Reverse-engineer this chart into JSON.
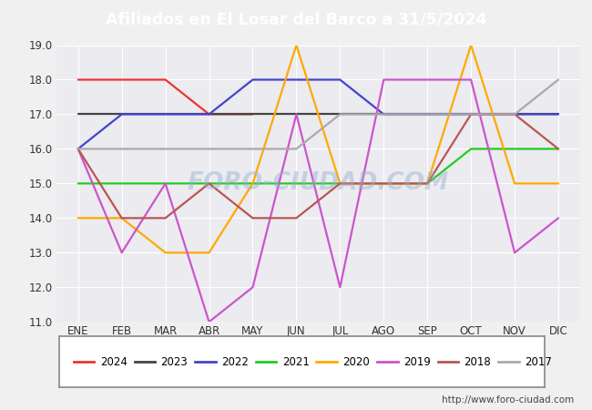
{
  "title": "Afiliados en El Losar del Barco a 31/5/2024",
  "months": [
    "ENE",
    "FEB",
    "MAR",
    "ABR",
    "MAY",
    "JUN",
    "JUL",
    "AGO",
    "SEP",
    "OCT",
    "NOV",
    "DIC"
  ],
  "ylim": [
    11.0,
    19.0
  ],
  "yticks": [
    11.0,
    12.0,
    13.0,
    14.0,
    15.0,
    16.0,
    17.0,
    18.0,
    19.0
  ],
  "series": [
    {
      "year": "2024",
      "color": "#ee3333",
      "data": [
        18,
        18,
        18,
        17,
        17,
        null,
        null,
        null,
        null,
        null,
        null,
        null
      ]
    },
    {
      "year": "2023",
      "color": "#444444",
      "data": [
        17,
        17,
        17,
        17,
        17,
        17,
        17,
        17,
        17,
        17,
        17,
        17
      ]
    },
    {
      "year": "2022",
      "color": "#4444cc",
      "data": [
        16,
        17,
        17,
        17,
        18,
        18,
        18,
        17,
        17,
        17,
        17,
        17
      ]
    },
    {
      "year": "2021",
      "color": "#22cc22",
      "data": [
        15,
        15,
        15,
        15,
        15,
        15,
        15,
        15,
        15,
        16,
        16,
        16
      ]
    },
    {
      "year": "2020",
      "color": "#ffaa00",
      "data": [
        14,
        14,
        13,
        13,
        15,
        19,
        15,
        15,
        15,
        19,
        15,
        15
      ]
    },
    {
      "year": "2019",
      "color": "#cc55cc",
      "data": [
        16,
        13,
        15,
        11,
        12,
        17,
        12,
        18,
        18,
        18,
        13,
        14
      ]
    },
    {
      "year": "2018",
      "color": "#bb5555",
      "data": [
        16,
        14,
        14,
        15,
        14,
        14,
        15,
        15,
        15,
        17,
        17,
        16
      ]
    },
    {
      "year": "2017",
      "color": "#aaaaaa",
      "data": [
        16,
        16,
        16,
        16,
        16,
        16,
        17,
        17,
        17,
        17,
        17,
        18
      ]
    }
  ],
  "outer_bg": "#f0f0f0",
  "plot_bg_color": "#ebebf0",
  "title_bg_color": "#4f8fc9",
  "title_text_color": "#ffffff",
  "footer_text": "http://www.foro-ciudad.com",
  "watermark": "FORO-CIUDAD.COM",
  "watermark_color": "#9aafcc",
  "grid_color": "#ffffff",
  "legend_border_color": "#888888",
  "tick_label_color": "#333333",
  "axis_label_fontsize": 8.5,
  "title_fontsize": 12.5,
  "linewidth": 1.6
}
